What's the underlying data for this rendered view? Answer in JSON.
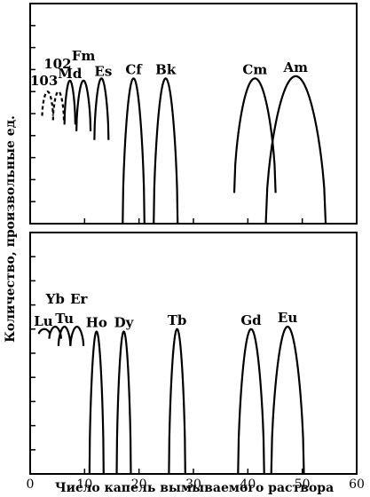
{
  "chart_data": {
    "type": "line",
    "xlabel": "Число капель вымываемого раствора",
    "ylabel": "Количество, произвольные ед.",
    "xlim": [
      0,
      60
    ],
    "x_ticks": [
      "0",
      "10",
      "20",
      "30",
      "40",
      "50",
      "60"
    ],
    "panels": [
      {
        "position": "top",
        "series": [
          {
            "name": "103",
            "center": 3.2,
            "halfwidth": 1.0,
            "peak": 0.6,
            "base": 0.49,
            "dashed": true
          },
          {
            "name": "102",
            "center": 5.2,
            "halfwidth": 1.0,
            "peak": 0.6,
            "base": 0.47,
            "dashed": true
          },
          {
            "name": "Md",
            "center": 7.3,
            "halfwidth": 1.0,
            "peak": 0.65,
            "base": 0.45,
            "dashed": false
          },
          {
            "name": "Fm",
            "center": 9.8,
            "halfwidth": 1.3,
            "peak": 0.65,
            "base": 0.42,
            "dashed": false
          },
          {
            "name": "Es",
            "center": 13.1,
            "halfwidth": 1.3,
            "peak": 0.66,
            "base": 0.38,
            "dashed": false
          },
          {
            "name": "Cf",
            "center": 19.0,
            "halfwidth": 2.0,
            "peak": 0.66,
            "base": 0.0,
            "dashed": false
          },
          {
            "name": "Bk",
            "center": 24.9,
            "halfwidth": 2.2,
            "peak": 0.66,
            "base": 0.0,
            "dashed": false
          },
          {
            "name": "Cm",
            "center": 41.3,
            "halfwidth": 3.8,
            "peak": 0.66,
            "base": 0.14,
            "dashed": false
          },
          {
            "name": "Am",
            "center": 48.8,
            "halfwidth": 5.5,
            "peak": 0.67,
            "base": 0.0,
            "dashed": false
          }
        ]
      },
      {
        "position": "bottom",
        "series": [
          {
            "name": "Lu",
            "center": 2.6,
            "halfwidth": 1.0,
            "peak": 0.6,
            "base": 0.58,
            "dashed": false
          },
          {
            "name": "Yb",
            "center": 4.6,
            "halfwidth": 1.1,
            "peak": 0.61,
            "base": 0.56,
            "dashed": false
          },
          {
            "name": "Tu",
            "center": 6.3,
            "halfwidth": 1.1,
            "peak": 0.61,
            "base": 0.53,
            "dashed": false
          },
          {
            "name": "Er",
            "center": 8.6,
            "halfwidth": 1.2,
            "peak": 0.61,
            "base": 0.53,
            "dashed": false
          },
          {
            "name": "Ho",
            "center": 12.2,
            "halfwidth": 1.3,
            "peak": 0.59,
            "base": 0.0,
            "dashed": false
          },
          {
            "name": "Dy",
            "center": 17.2,
            "halfwidth": 1.3,
            "peak": 0.59,
            "base": 0.0,
            "dashed": false
          },
          {
            "name": "Tb",
            "center": 27.0,
            "halfwidth": 1.5,
            "peak": 0.6,
            "base": 0.0,
            "dashed": false
          },
          {
            "name": "Gd",
            "center": 40.6,
            "halfwidth": 2.4,
            "peak": 0.6,
            "base": 0.0,
            "dashed": false
          },
          {
            "name": "Eu",
            "center": 47.3,
            "halfwidth": 3.0,
            "peak": 0.61,
            "base": 0.0,
            "dashed": false
          }
        ]
      }
    ]
  }
}
